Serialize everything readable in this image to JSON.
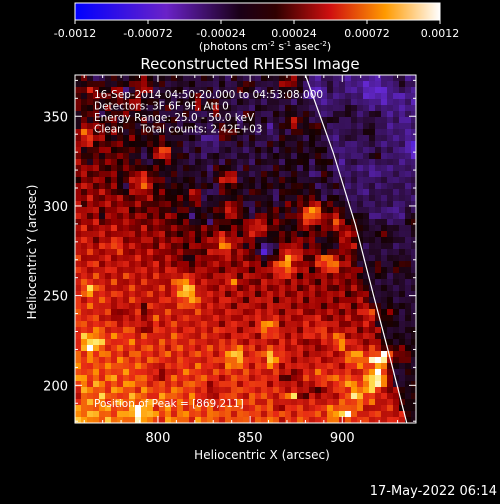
{
  "chart_data": {
    "type": "heatmap",
    "title": "Reconstructed RHESSI Image",
    "xlabel": "Heliocentric X (arcsec)",
    "ylabel": "Heliocentric Y (arcsec)",
    "xlim": [
      755,
      940
    ],
    "ylim": [
      179,
      373
    ],
    "x_ticks": [
      800,
      850,
      900
    ],
    "y_ticks": [
      200,
      250,
      300,
      350
    ],
    "colorbar": {
      "ticks": [
        "-0.0012",
        "-0.00072",
        "-0.00024",
        "0.00024",
        "0.00072",
        "0.0012"
      ],
      "range": [
        -0.0012,
        0.0012
      ],
      "units_base": "(photons cm",
      "units_sup1": "-2",
      "units_mid1": " s",
      "units_sup2": "-1",
      "units_mid2": " asec",
      "units_sup3": "-2",
      "units_end": ")"
    },
    "info_lines": [
      "16-Sep-2014 04:50:20.000 to 04:53:08.000",
      "Detectors: 3F 6F 9F, Att 0",
      "Energy Range: 25.0 - 50.0 keV",
      "Clean     Total counts: 2.42E+03"
    ],
    "peak_label": "Position of Peak = [869,211]",
    "limb_curve": [
      [
        880,
        373
      ],
      [
        895,
        330
      ],
      [
        907,
        290
      ],
      [
        917,
        250
      ],
      [
        926,
        215
      ],
      [
        935,
        179
      ]
    ],
    "grid": false
  },
  "footer": {
    "date": "17-May-2022 06:14"
  }
}
